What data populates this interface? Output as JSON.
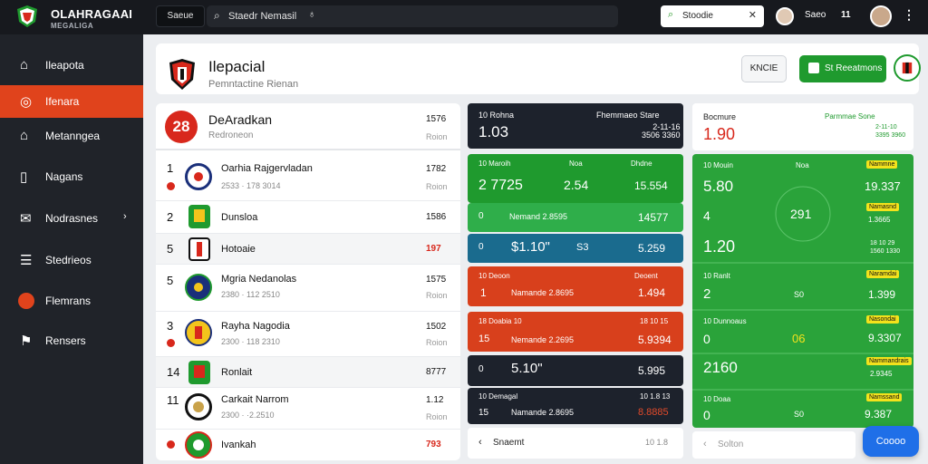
{
  "topbar": {
    "brand": "OLAHRAGAAI",
    "brand_sub": "MEGALIGA",
    "mode_button": "Saeue",
    "search_text": "Staedr Nemasil",
    "alert_text": "Stoodie",
    "user_name": "Saeo",
    "user_count": "11"
  },
  "sidebar": {
    "items": [
      {
        "label": "Ileapota",
        "icon": "home-icon"
      },
      {
        "label": "Ifenara",
        "icon": "target-icon",
        "active": true
      },
      {
        "label": "Metanngea",
        "icon": "house-icon"
      },
      {
        "label": "Nagans",
        "icon": "building-icon"
      },
      {
        "label": "Nodrasnes",
        "icon": "mail-icon"
      },
      {
        "label": "Stedrieos",
        "icon": "list-icon"
      },
      {
        "label": "Flemrans",
        "icon": "dot-icon"
      },
      {
        "label": "Rensers",
        "icon": "user-icon"
      }
    ]
  },
  "header": {
    "title": "Ilepacial",
    "subtitle": "Pemntactine Rienan",
    "btn_secondary": "KNCIE",
    "btn_primary": "St Reeatmons"
  },
  "standings": {
    "badge": "28",
    "title": "DeAradkan",
    "subtitle": "Redroneon",
    "value": "1576",
    "unit": "Roion",
    "rows": [
      {
        "rank": "1",
        "name": "Oarhia Rajgervladan",
        "meta": "2533 · 178 3014",
        "pts": "1782",
        "tag": "Roion",
        "dot": true
      },
      {
        "rank": "2",
        "name": "Dunsloa",
        "meta": "",
        "pts": "1586",
        "tag": ""
      },
      {
        "rank": "5",
        "name": "Hotoaie",
        "meta": "",
        "pts": "197",
        "tag": "",
        "red": true
      },
      {
        "rank": "5",
        "name": "Mgria Nedanolas",
        "meta": "2380 · 112 2510",
        "pts": "1575",
        "tag": "Roion"
      },
      {
        "rank": "3",
        "name": "Rayha Nagodia",
        "meta": "2300 · 118 2310",
        "pts": "1502",
        "tag": "Roion",
        "dot": true
      },
      {
        "rank": "14",
        "name": "Ronlait",
        "meta": "",
        "pts": "8777",
        "tag": ""
      },
      {
        "rank": "11",
        "name": "Carkait Narrom",
        "meta": "2300 · ·2.2510",
        "pts": "1.12",
        "tag": "Roion"
      },
      {
        "rank": "",
        "name": "Ivankah",
        "meta": "",
        "pts": "793",
        "tag": "",
        "red": true,
        "dot": true
      }
    ]
  },
  "odds_mid": {
    "head": {
      "label": "10 Rohna",
      "value": "1.03",
      "right_label": "Fhemmaeo Stare",
      "right_sub": "2-11-16\n3506 3360"
    },
    "green1": {
      "top_left": "10 Maroih",
      "top_mid": "Noa",
      "top_right": "Dhdne",
      "big_left": "2 7725",
      "big_mid": "2.54",
      "big_right": "15.554"
    },
    "green2": {
      "left": "0",
      "label": "Nemand 2.8595",
      "right": "14577"
    },
    "blue": {
      "left": "0",
      "big": "$1.10\"",
      "mid": "S3",
      "right": "5.259"
    },
    "red1": {
      "top": "10 Deoon",
      "top_right": "Deoent",
      "left": "1",
      "label": "Namande 2.8695",
      "right": "1.494"
    },
    "red2": {
      "top": "18 Doabia 10",
      "top_right": "18 10 15",
      "left": "15",
      "label": "Nemande 2.2695",
      "right": "5.9394"
    },
    "dark1": {
      "left": "0",
      "big": "5.10\"",
      "right": "5.995"
    },
    "dark2": {
      "top": "10 Demagal",
      "top_right": "10 1.8 13",
      "left": "15",
      "label": "Namande 2.8695",
      "right": "8.8885"
    },
    "foot": {
      "label": "Snaemt",
      "right": "10 1.8"
    }
  },
  "odds_right": {
    "head": {
      "label": "Bocmure",
      "value": "1.90",
      "right_label": "Parmmae Sone",
      "right_sub": "2-11-10\n3395 3960"
    },
    "g1": {
      "top": "10 Mouin",
      "top_mid": "Noa",
      "badge": "Nammne",
      "big": "5.80",
      "right": "19.337"
    },
    "g2": {
      "left": "4",
      "mid": "291",
      "badge": "Namasnd",
      "right": "1.3665"
    },
    "g3": {
      "big": "1.20",
      "right": "18 10 29\n1560 1330"
    },
    "g4": {
      "top": "10 Ranlt",
      "badge": "Naramdai",
      "left": "2",
      "mid": "S0",
      "right": "1.399"
    },
    "g5": {
      "top": "10 Dunnoaus",
      "badge": "Nasondai",
      "left": "0",
      "mid": "06",
      "right": "9.3307"
    },
    "g6": {
      "big": "2160",
      "badge": "Nammandrais",
      "right": "2.9345"
    },
    "g7": {
      "top": "10 Doaa",
      "badge": "Namssand",
      "left": "0",
      "mid": "S0",
      "right": "9.387"
    },
    "foot": {
      "label": "Solton"
    }
  },
  "fab_label": "Coooo"
}
